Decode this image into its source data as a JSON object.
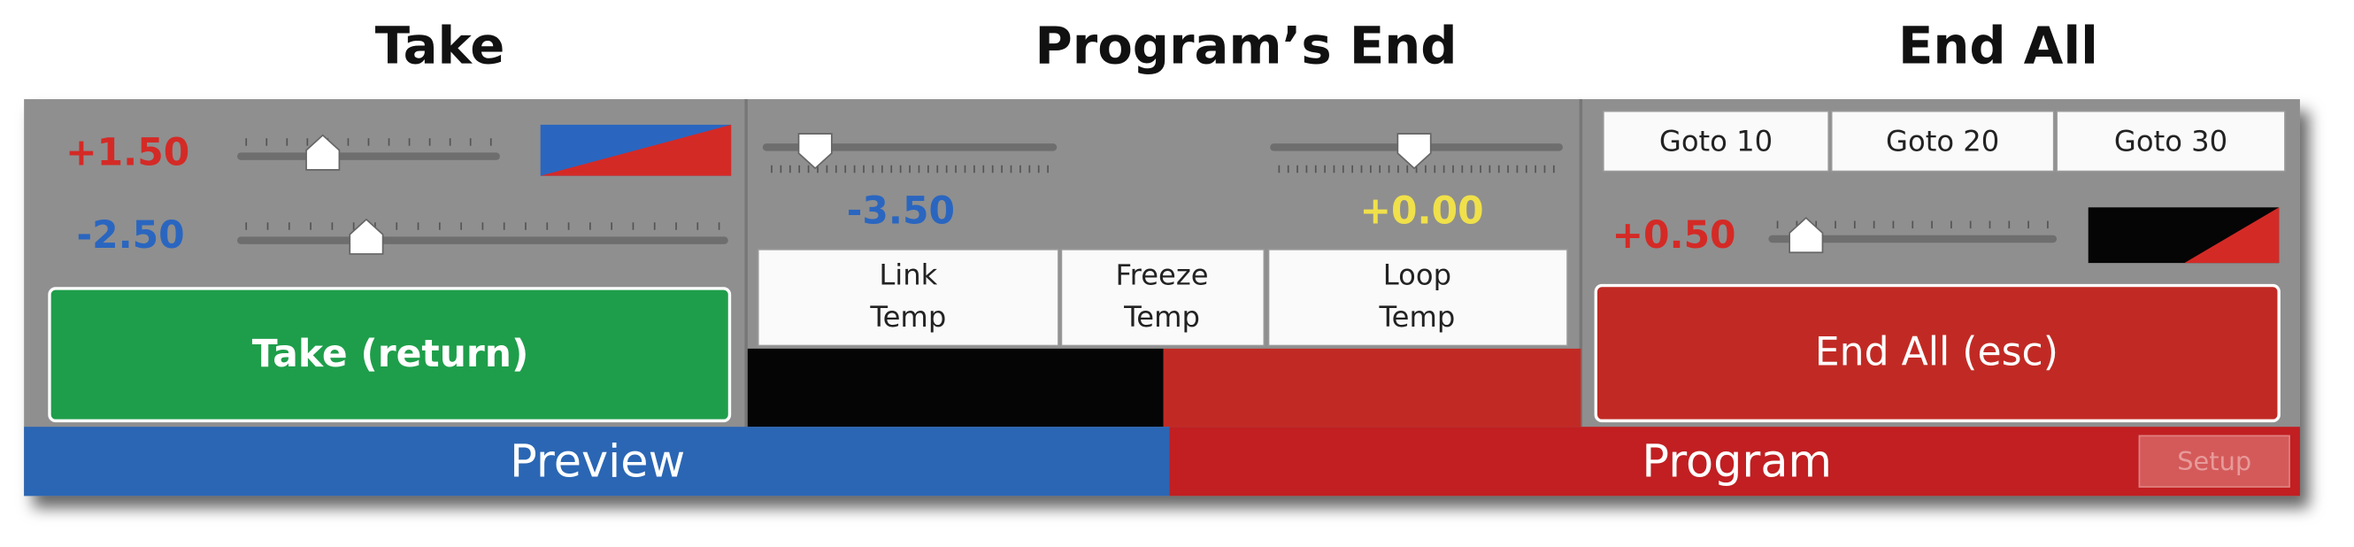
{
  "sections": {
    "take": {
      "title": "Take",
      "readouts": [
        "+1.50",
        "-2.50"
      ],
      "button": "Take (return)"
    },
    "programs_end": {
      "title": "Program’s End",
      "readouts": [
        "-3.50",
        "+0.00"
      ],
      "buttons": [
        [
          "Link",
          "Temp"
        ],
        [
          "Freeze",
          "Temp"
        ],
        [
          "Loop",
          "Temp"
        ]
      ]
    },
    "end_all": {
      "title": "End All",
      "goto_buttons": [
        "Goto 10",
        "Goto 20",
        "Goto 30"
      ],
      "readout": "+0.50",
      "button": "End All (esc)"
    }
  },
  "status_bar": {
    "preview": "Preview",
    "program": "Program",
    "setup": "Setup"
  }
}
